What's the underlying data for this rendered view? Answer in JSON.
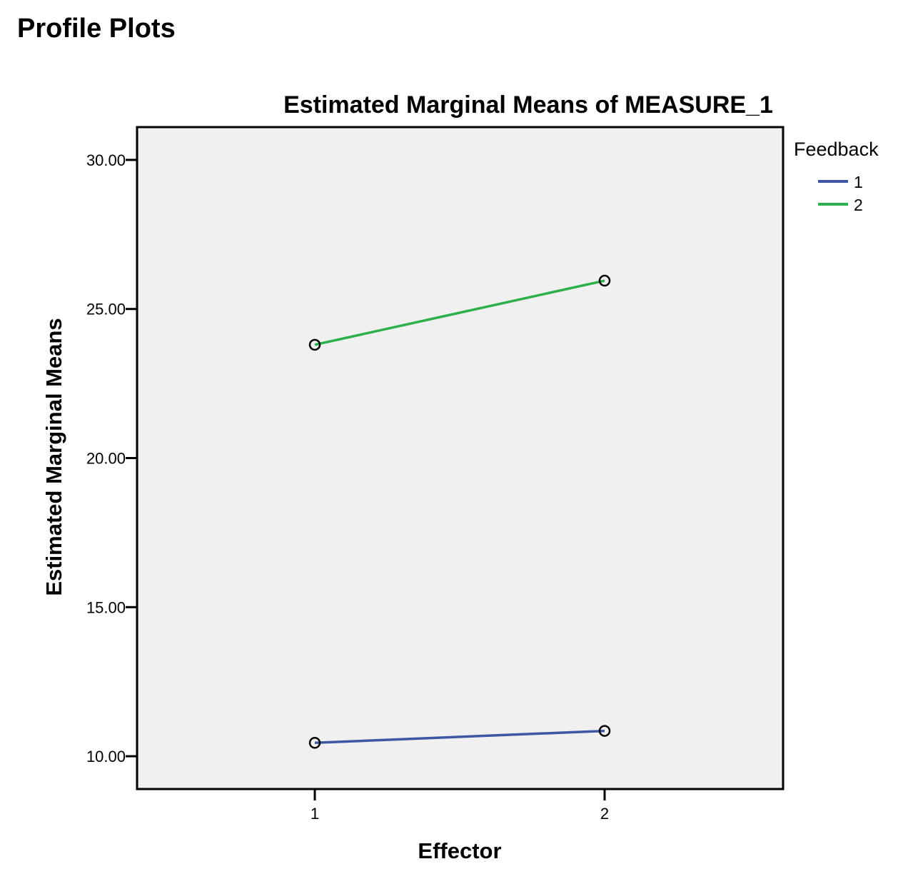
{
  "page": {
    "heading": "Profile Plots"
  },
  "chart_data": {
    "type": "line",
    "title": "Estimated Marginal Means of MEASURE_1",
    "xlabel": "Effector",
    "ylabel": "Estimated Marginal Means",
    "categories": [
      "1",
      "2"
    ],
    "ylim": [
      8.9,
      31.1
    ],
    "yticks": [
      10,
      15,
      20,
      25,
      30
    ],
    "ytick_labels": [
      "10.00",
      "15.00",
      "20.00",
      "25.00",
      "30.00"
    ],
    "grid": false,
    "markers": "open-circle",
    "plot_background": "#f0f0f0",
    "legend": {
      "title": "Feedback",
      "placement": "right"
    },
    "series": [
      {
        "name": "1",
        "color": "#3d57a5",
        "values": [
          10.45,
          10.85
        ]
      },
      {
        "name": "2",
        "color": "#2db04b",
        "values": [
          23.8,
          25.95
        ]
      }
    ]
  }
}
